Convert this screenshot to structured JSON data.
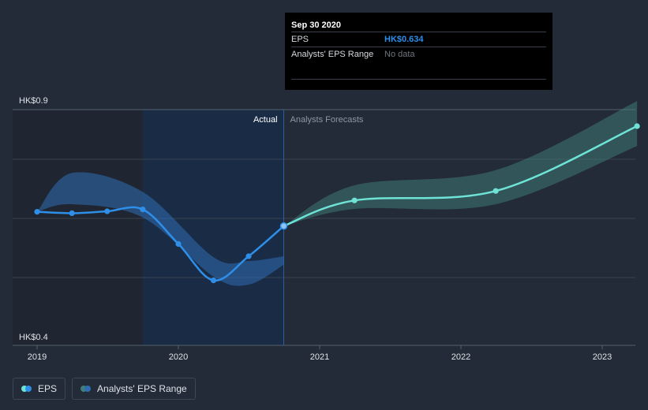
{
  "chart_data": {
    "type": "line",
    "title": "",
    "xlabel": "",
    "ylabel": "",
    "x_ticks": [
      "2019",
      "2020",
      "2021",
      "2022",
      "2023"
    ],
    "y_ticks": [
      "HK$0.9",
      "HK$0.4"
    ],
    "ylim": [
      0.4,
      0.9
    ],
    "region_labels": {
      "actual": "Actual",
      "forecast": "Analysts Forecasts"
    },
    "series": [
      {
        "name": "EPS",
        "kind": "actual",
        "color": "#2e8ee8",
        "points": [
          {
            "date": "2019-01-01",
            "value": 0.664
          },
          {
            "date": "2019-04-01",
            "value": 0.661
          },
          {
            "date": "2019-07-01",
            "value": 0.665
          },
          {
            "date": "2019-10-01",
            "value": 0.669
          },
          {
            "date": "2020-01-01",
            "value": 0.596
          },
          {
            "date": "2020-04-01",
            "value": 0.519
          },
          {
            "date": "2020-07-01",
            "value": 0.57
          },
          {
            "date": "2020-09-30",
            "value": 0.634
          }
        ]
      },
      {
        "name": "EPS",
        "kind": "forecast",
        "color": "#6fe3d6",
        "points": [
          {
            "date": "2020-09-30",
            "value": 0.634
          },
          {
            "date": "2021-04-01",
            "value": 0.688
          },
          {
            "date": "2022-04-01",
            "value": 0.708
          },
          {
            "date": "2023-04-01",
            "value": 0.845
          }
        ]
      }
    ],
    "range_bands": [
      {
        "name": "Analysts' EPS Range",
        "kind": "actual",
        "color": "#2f6db3",
        "points": [
          {
            "date": "2019-01-01",
            "low": 0.664,
            "high": 0.664
          },
          {
            "date": "2019-04-01",
            "low": 0.68,
            "high": 0.746
          },
          {
            "date": "2019-10-01",
            "low": 0.652,
            "high": 0.706
          },
          {
            "date": "2020-04-01",
            "low": 0.527,
            "high": 0.568
          },
          {
            "date": "2020-07-01",
            "low": 0.51,
            "high": 0.56
          },
          {
            "date": "2020-09-30",
            "low": 0.552,
            "high": 0.57
          }
        ]
      },
      {
        "name": "Analysts' EPS Range",
        "kind": "forecast",
        "color": "#3f7f7a",
        "points": [
          {
            "date": "2020-09-30",
            "low": 0.634,
            "high": 0.634
          },
          {
            "date": "2021-04-01",
            "low": 0.67,
            "high": 0.72
          },
          {
            "date": "2022-04-01",
            "low": 0.68,
            "high": 0.752
          },
          {
            "date": "2023-04-01",
            "low": 0.803,
            "high": 0.898
          }
        ]
      }
    ],
    "legend": [
      {
        "label": "EPS",
        "colors": [
          "#6fe3d6",
          "#2e8ee8"
        ]
      },
      {
        "label": "Analysts' EPS Range",
        "colors": [
          "#3f7f7a",
          "#2f6db3"
        ]
      }
    ],
    "grid": true,
    "legend_position": "bottom-left"
  },
  "tooltip": {
    "date": "Sep 30 2020",
    "rows": [
      {
        "label": "EPS",
        "value": "HK$0.634"
      },
      {
        "label": "Analysts' EPS Range",
        "value": "No data"
      }
    ]
  }
}
